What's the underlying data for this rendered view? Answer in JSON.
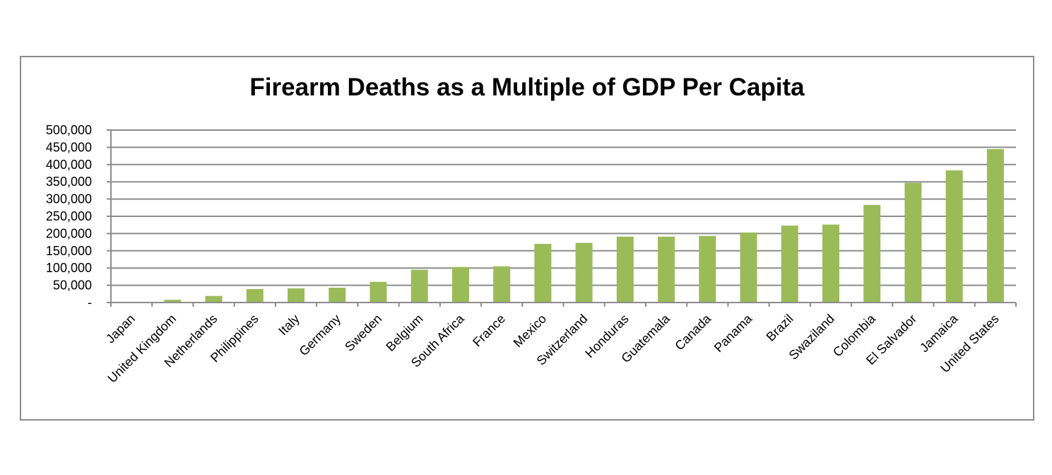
{
  "chart_data": {
    "type": "bar",
    "title": "Firearm Deaths as a Multiple of GDP Per Capita",
    "xlabel": "",
    "ylabel": "",
    "categories": [
      "Japan",
      "United Kingdom",
      "Netherlands",
      "Philippines",
      "Italy",
      "Germany",
      "Sweden",
      "Belgium",
      "South Africa",
      "France",
      "Mexico",
      "Switzerland",
      "Honduras",
      "Guatemala",
      "Canada",
      "Panama",
      "Brazil",
      "Swaziland",
      "Colombia",
      "El Salvador",
      "Jamaica",
      "United States"
    ],
    "values": [
      500,
      8000,
      19000,
      39000,
      41000,
      43000,
      60000,
      95000,
      103000,
      105000,
      170000,
      173000,
      191000,
      191000,
      193000,
      203000,
      223000,
      226000,
      283000,
      347000,
      383000,
      445000
    ],
    "ylim": [
      0,
      500000
    ],
    "yticks": [
      0,
      50000,
      100000,
      150000,
      200000,
      250000,
      300000,
      350000,
      400000,
      450000,
      500000
    ],
    "ytick_labels": [
      "-",
      "50,000",
      "100,000",
      "150,000",
      "200,000",
      "250,000",
      "300,000",
      "350,000",
      "400,000",
      "450,000",
      "500,000"
    ],
    "grid": true,
    "legend": "none",
    "colors": {
      "bar": "#9bbb59",
      "grid": "#8c8c8c",
      "axis": "#8c8c8c",
      "frame": "#8c8c8c"
    }
  }
}
